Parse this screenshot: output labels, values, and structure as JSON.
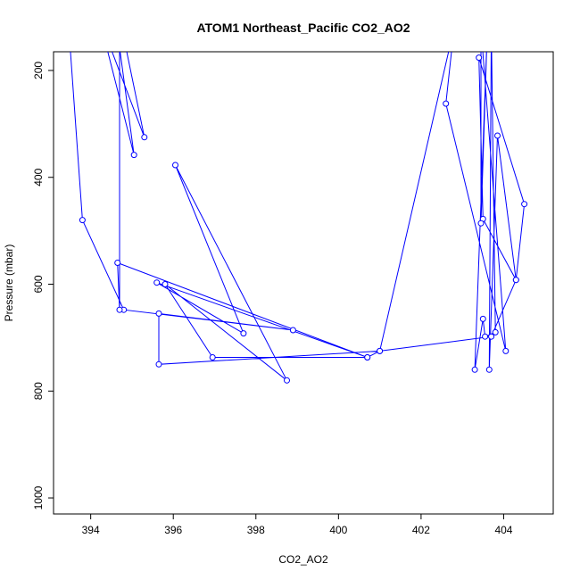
{
  "chart_data": {
    "type": "line",
    "title": "ATOM1 Northeast_Pacific CO2_AO2",
    "xlabel": "CO2_AO2",
    "ylabel": "Pressure (mbar)",
    "xlim": [
      393.1,
      405.2
    ],
    "ylim": [
      1030,
      165
    ],
    "y_reversed": true,
    "xticks": [
      394,
      396,
      398,
      400,
      402,
      404
    ],
    "yticks": [
      200,
      400,
      600,
      800,
      1000
    ],
    "series": [
      {
        "color": "#0000ff",
        "marker": "open-circle",
        "points": [
          [
            393.45,
            100
          ],
          [
            393.8,
            480
          ],
          [
            394.8,
            648
          ],
          [
            398.9,
            686
          ],
          [
            395.65,
            655
          ],
          [
            395.65,
            750
          ],
          [
            401.0,
            725
          ],
          [
            403.7,
            698
          ],
          [
            404.3,
            592
          ],
          [
            403.5,
            478
          ],
          [
            403.4,
            176
          ],
          [
            404.5,
            450
          ],
          [
            404.3,
            592
          ],
          [
            403.85,
            322
          ],
          [
            403.65,
            760
          ],
          [
            403.7,
            120
          ],
          [
            403.8,
            690
          ],
          [
            403.55,
            698
          ],
          [
            403.5,
            665
          ],
          [
            403.3,
            760
          ],
          [
            403.6,
            130
          ],
          [
            403.45,
            486
          ],
          [
            403.45,
            120
          ],
          [
            404.05,
            725
          ],
          [
            402.6,
            262
          ],
          [
            402.8,
            120
          ],
          [
            401.0,
            725
          ],
          [
            400.7,
            737
          ],
          [
            395.6,
            597
          ],
          [
            397.7,
            692
          ],
          [
            396.05,
            377
          ],
          [
            398.75,
            780
          ],
          [
            395.8,
            600
          ],
          [
            396.95,
            737
          ],
          [
            400.7,
            737
          ],
          [
            394.65,
            560
          ],
          [
            394.7,
            648
          ],
          [
            394.7,
            100
          ],
          [
            395.3,
            325
          ],
          [
            394.2,
            100
          ],
          [
            395.05,
            358
          ],
          [
            394.6,
            100
          ]
        ]
      }
    ]
  }
}
